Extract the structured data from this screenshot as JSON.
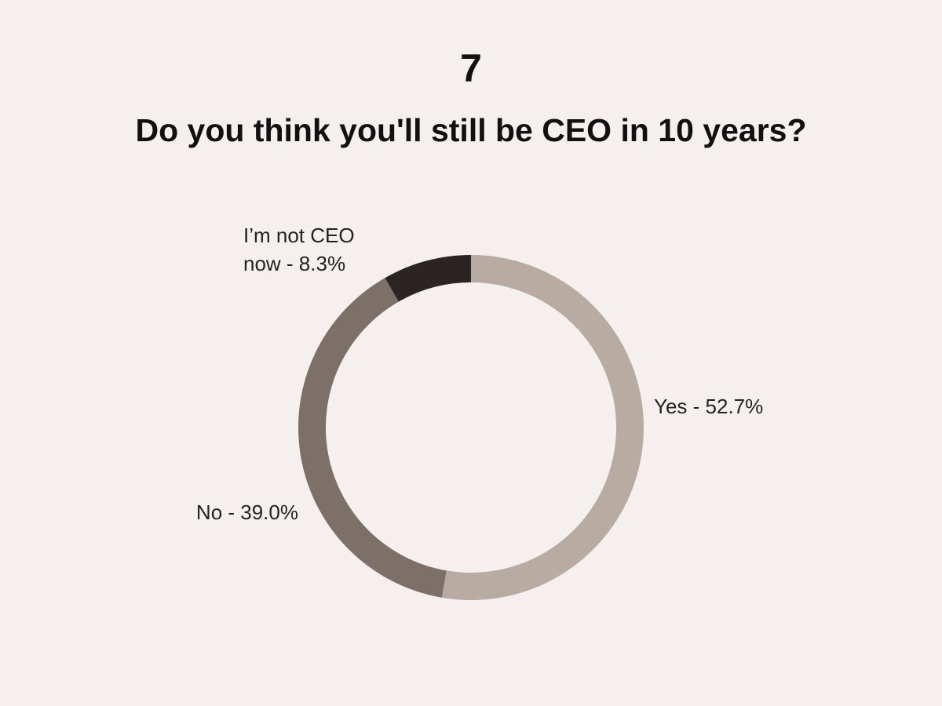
{
  "chart_data": {
    "type": "donut",
    "number": "7",
    "title": "Do you think you'll still be CEO in 10 years?",
    "values": [
      52.7,
      39.0,
      8.3
    ],
    "value_labels": [
      "Yes - 52.7%",
      "No - 39.0%",
      "I’m not CEO now - 8.3%"
    ],
    "colors": [
      "#b8aba2",
      "#7d7068",
      "#2a2522"
    ]
  }
}
